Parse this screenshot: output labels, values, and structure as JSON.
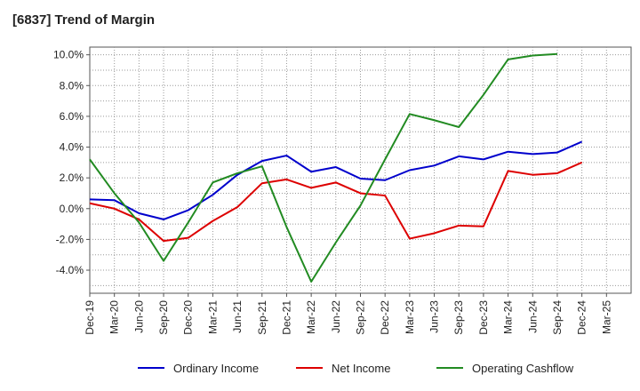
{
  "chart_title": "[6837]  Trend of Margin",
  "chart_data": {
    "type": "line",
    "title": "[6837]  Trend of Margin",
    "xlabel": "",
    "ylabel": "",
    "categories": [
      "Dec-19",
      "Mar-20",
      "Jun-20",
      "Sep-20",
      "Dec-20",
      "Mar-21",
      "Jun-21",
      "Sep-21",
      "Dec-21",
      "Mar-22",
      "Jun-22",
      "Sep-22",
      "Dec-22",
      "Mar-23",
      "Jun-23",
      "Sep-23",
      "Dec-23",
      "Mar-24",
      "Jun-24",
      "Sep-24",
      "Dec-24",
      "Mar-25"
    ],
    "ylim": [
      -5.5,
      10.5
    ],
    "yticks": [
      10.0,
      8.0,
      6.0,
      4.0,
      2.0,
      0.0,
      -2.0,
      -4.0
    ],
    "ytick_labels": [
      "10.0%",
      "8.0%",
      "6.0%",
      "4.0%",
      "2.0%",
      "0.0%",
      "-2.0%",
      "-4.0%"
    ],
    "grid": true,
    "legend_position": "bottom",
    "series": [
      {
        "name": "Ordinary Income",
        "color": "#0000cc",
        "values": [
          0.6,
          0.55,
          -0.3,
          -0.7,
          -0.1,
          0.9,
          2.2,
          3.1,
          3.45,
          2.4,
          2.7,
          1.95,
          1.85,
          2.5,
          2.8,
          3.4,
          3.2,
          3.7,
          3.55,
          3.65,
          4.35,
          null
        ]
      },
      {
        "name": "Net Income",
        "color": "#dd0000",
        "values": [
          0.35,
          0.0,
          -0.7,
          -2.1,
          -1.9,
          -0.8,
          0.1,
          1.65,
          1.9,
          1.35,
          1.7,
          1.0,
          0.85,
          -1.95,
          -1.6,
          -1.1,
          -1.15,
          2.45,
          2.2,
          2.3,
          3.0,
          null
        ]
      },
      {
        "name": "Operating Cashflow",
        "color": "#228b22",
        "values": [
          3.2,
          1.0,
          -0.9,
          -3.4,
          -0.9,
          1.7,
          2.3,
          2.75,
          -1.2,
          -4.75,
          -2.2,
          0.2,
          3.2,
          6.15,
          5.75,
          5.3,
          7.4,
          9.7,
          9.95,
          10.05,
          null,
          null
        ]
      }
    ]
  }
}
